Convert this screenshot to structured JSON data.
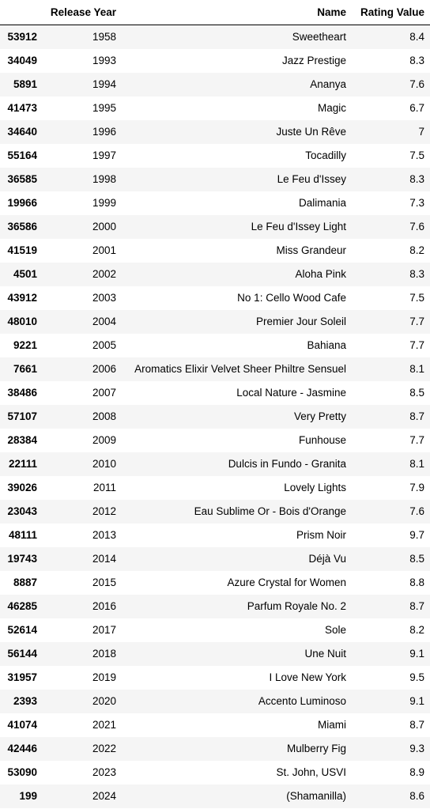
{
  "table": {
    "index_header": "",
    "columns": [
      "Release Year",
      "Name",
      "Rating Value"
    ],
    "rows": [
      {
        "idx": "53912",
        "year": "1958",
        "name": "Sweetheart",
        "rating": "8.4"
      },
      {
        "idx": "34049",
        "year": "1993",
        "name": "Jazz Prestige",
        "rating": "8.3"
      },
      {
        "idx": "5891",
        "year": "1994",
        "name": "Ananya",
        "rating": "7.6"
      },
      {
        "idx": "41473",
        "year": "1995",
        "name": "Magic",
        "rating": "6.7"
      },
      {
        "idx": "34640",
        "year": "1996",
        "name": "Juste Un Rêve",
        "rating": "7"
      },
      {
        "idx": "55164",
        "year": "1997",
        "name": "Tocadilly",
        "rating": "7.5"
      },
      {
        "idx": "36585",
        "year": "1998",
        "name": "Le Feu d'Issey",
        "rating": "8.3"
      },
      {
        "idx": "19966",
        "year": "1999",
        "name": "Dalimania",
        "rating": "7.3"
      },
      {
        "idx": "36586",
        "year": "2000",
        "name": "Le Feu d'Issey Light",
        "rating": "7.6"
      },
      {
        "idx": "41519",
        "year": "2001",
        "name": "Miss Grandeur",
        "rating": "8.2"
      },
      {
        "idx": "4501",
        "year": "2002",
        "name": "Aloha Pink",
        "rating": "8.3"
      },
      {
        "idx": "43912",
        "year": "2003",
        "name": "No 1: Cello Wood Cafe",
        "rating": "7.5"
      },
      {
        "idx": "48010",
        "year": "2004",
        "name": "Premier Jour Soleil",
        "rating": "7.7"
      },
      {
        "idx": "9221",
        "year": "2005",
        "name": "Bahiana",
        "rating": "7.7"
      },
      {
        "idx": "7661",
        "year": "2006",
        "name": "Aromatics Elixir Velvet Sheer Philtre Sensuel",
        "rating": "8.1"
      },
      {
        "idx": "38486",
        "year": "2007",
        "name": "Local Nature - Jasmine",
        "rating": "8.5"
      },
      {
        "idx": "57107",
        "year": "2008",
        "name": "Very Pretty",
        "rating": "8.7"
      },
      {
        "idx": "28384",
        "year": "2009",
        "name": "Funhouse",
        "rating": "7.7"
      },
      {
        "idx": "22111",
        "year": "2010",
        "name": "Dulcis in Fundo - Granita",
        "rating": "8.1"
      },
      {
        "idx": "39026",
        "year": "2011",
        "name": "Lovely Lights",
        "rating": "7.9"
      },
      {
        "idx": "23043",
        "year": "2012",
        "name": "Eau Sublime Or - Bois d'Orange",
        "rating": "7.6"
      },
      {
        "idx": "48111",
        "year": "2013",
        "name": "Prism Noir",
        "rating": "9.7"
      },
      {
        "idx": "19743",
        "year": "2014",
        "name": "Déjà Vu",
        "rating": "8.5"
      },
      {
        "idx": "8887",
        "year": "2015",
        "name": "Azure Crystal for Women",
        "rating": "8.8"
      },
      {
        "idx": "46285",
        "year": "2016",
        "name": "Parfum Royale No. 2",
        "rating": "8.7"
      },
      {
        "idx": "52614",
        "year": "2017",
        "name": "Sole",
        "rating": "8.2"
      },
      {
        "idx": "56144",
        "year": "2018",
        "name": "Une Nuit",
        "rating": "9.1"
      },
      {
        "idx": "31957",
        "year": "2019",
        "name": "I Love New York",
        "rating": "9.5"
      },
      {
        "idx": "2393",
        "year": "2020",
        "name": "Accento Luminoso",
        "rating": "9.1"
      },
      {
        "idx": "41074",
        "year": "2021",
        "name": "Miami",
        "rating": "8.7"
      },
      {
        "idx": "42446",
        "year": "2022",
        "name": "Mulberry Fig",
        "rating": "9.3"
      },
      {
        "idx": "53090",
        "year": "2023",
        "name": "St. John, USVI",
        "rating": "8.9"
      },
      {
        "idx": "199",
        "year": "2024",
        "name": "(Shamanilla)",
        "rating": "8.6"
      }
    ]
  },
  "colors": {
    "stripe": "#f5f5f5",
    "header_rule": "#000000"
  }
}
